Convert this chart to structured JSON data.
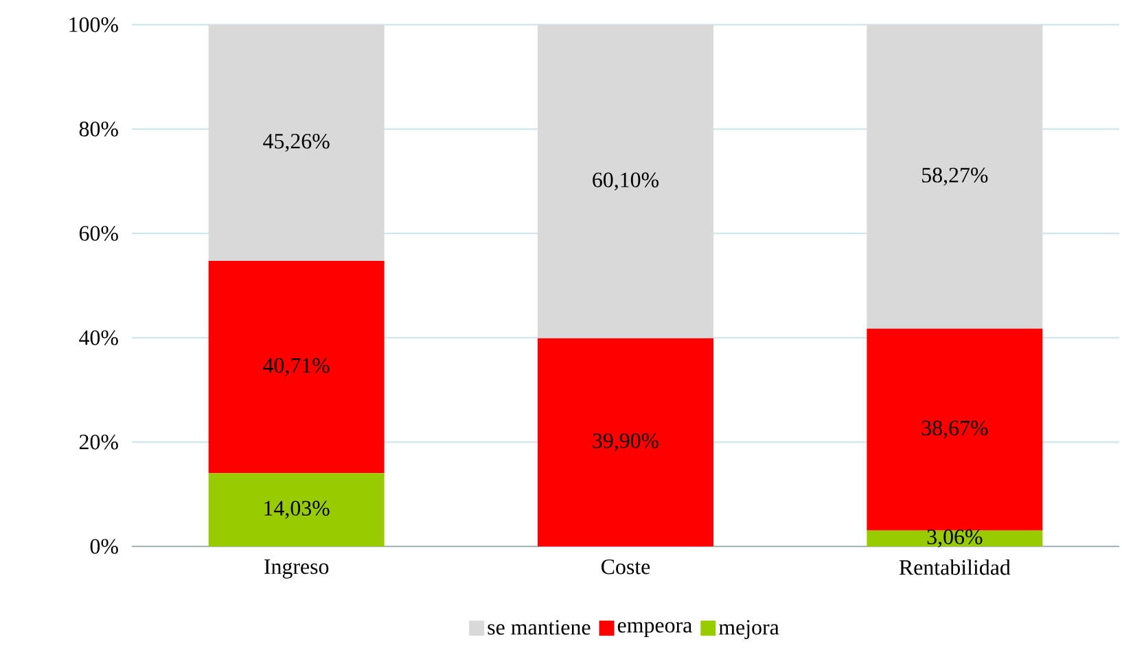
{
  "chart_data": {
    "type": "bar",
    "stacked": true,
    "categories": [
      "Ingreso",
      "Coste",
      "Rentabilidad"
    ],
    "series": [
      {
        "name": "mejora",
        "color": "#99cc00",
        "values": [
          14.03,
          0,
          3.06
        ],
        "value_labels": [
          "14,03%",
          null,
          "3,06%"
        ]
      },
      {
        "name": "empeora",
        "color": "#ff0000",
        "values": [
          40.71,
          39.9,
          38.67
        ],
        "value_labels": [
          "40,71%",
          "39,90%",
          "38,67%"
        ]
      },
      {
        "name": "se mantiene",
        "color": "#d9d9d9",
        "values": [
          45.26,
          60.1,
          58.27
        ],
        "value_labels": [
          "45,26%",
          "60,10%",
          "58,27%"
        ]
      }
    ],
    "ylim": [
      0,
      100
    ],
    "yticks": [
      {
        "value": 0,
        "label": "0%"
      },
      {
        "value": 20,
        "label": "20%"
      },
      {
        "value": 40,
        "label": "40%"
      },
      {
        "value": 60,
        "label": "60%"
      },
      {
        "value": 80,
        "label": "80%"
      },
      {
        "value": 100,
        "label": "100%"
      }
    ],
    "grid": "y",
    "legend": "bottom"
  }
}
